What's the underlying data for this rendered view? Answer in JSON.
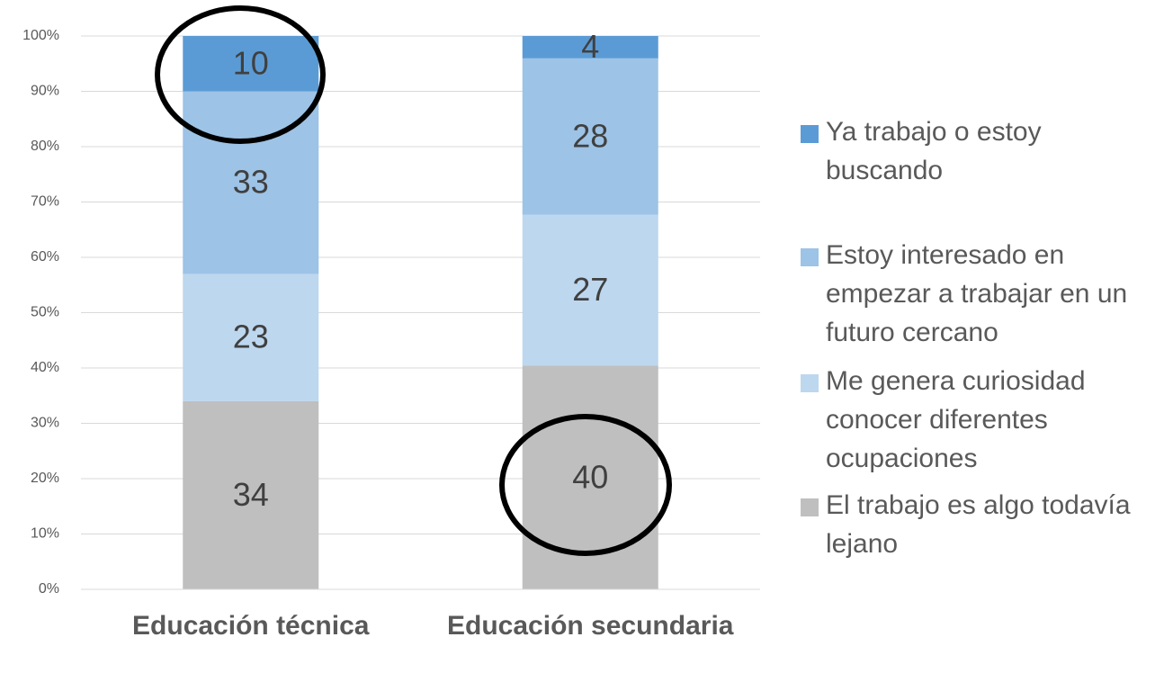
{
  "chart_data": {
    "type": "stacked_bar_percent",
    "categories": [
      "Educación técnica",
      "Educación secundaria"
    ],
    "series": [
      {
        "name": "El trabajo es algo todavía lejano",
        "color": "#bfbfbf",
        "values": [
          34,
          40
        ]
      },
      {
        "name": "Me genera curiosidad conocer diferentes ocupaciones",
        "color": "#bdd7ee",
        "values": [
          23,
          27
        ]
      },
      {
        "name": "Estoy interesado en empezar a trabajar en un futuro cercano",
        "color": "#9dc3e6",
        "values": [
          33,
          28
        ]
      },
      {
        "name": "Ya trabajo o estoy buscando",
        "color": "#5b9bd5",
        "values": [
          10,
          4
        ]
      }
    ],
    "ylim": [
      0,
      100
    ],
    "yticks": [
      {
        "value": 0,
        "label": "0%"
      },
      {
        "value": 10,
        "label": "10%"
      },
      {
        "value": 20,
        "label": "20%"
      },
      {
        "value": 30,
        "label": "30%"
      },
      {
        "value": 40,
        "label": "40%"
      },
      {
        "value": 50,
        "label": "50%"
      },
      {
        "value": 60,
        "label": "60%"
      },
      {
        "value": 70,
        "label": "70%"
      },
      {
        "value": 80,
        "label": "80%"
      },
      {
        "value": 90,
        "label": "90%"
      },
      {
        "value": 100,
        "label": "100%"
      }
    ],
    "grid": true,
    "legend": "right"
  }
}
